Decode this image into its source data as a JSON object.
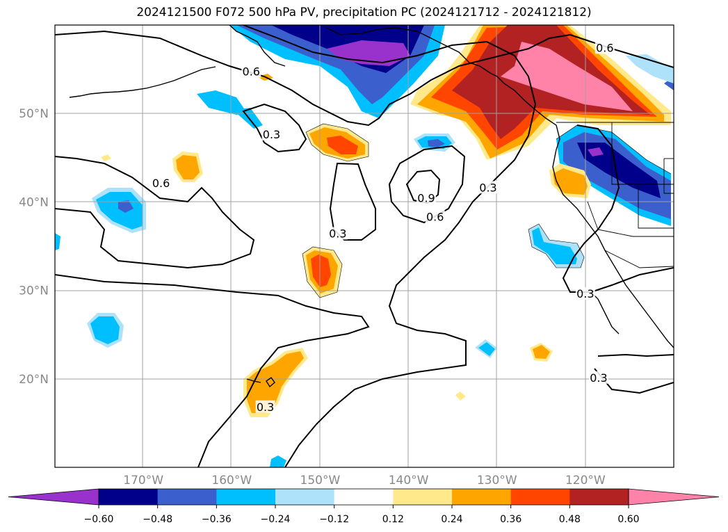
{
  "title": "2024121500 F072 500 hPa PV, precipitation PC (2024121712 - 2024121812)",
  "map": {
    "lat_labels": [
      {
        "lat": 50,
        "label": "50°N"
      },
      {
        "lat": 40,
        "label": "40°N"
      },
      {
        "lat": 30,
        "label": "30°N"
      },
      {
        "lat": 20,
        "label": "20°N"
      }
    ],
    "lon_labels": [
      {
        "lon": -170,
        "label": "170°W"
      },
      {
        "lon": -160,
        "label": "160°W"
      },
      {
        "lon": -150,
        "label": "150°W"
      },
      {
        "lon": -140,
        "label": "140°W"
      },
      {
        "lon": -130,
        "label": "130°W"
      },
      {
        "lon": -120,
        "label": "120°W"
      }
    ],
    "contour_labels": [
      {
        "text": "0.6",
        "lon": -157.8,
        "lat": 54.6
      },
      {
        "text": "0.6",
        "lon": -117.8,
        "lat": 57.3
      },
      {
        "text": "0.3",
        "lon": -155.5,
        "lat": 47.5
      },
      {
        "text": "0.6",
        "lon": -168.0,
        "lat": 42.0
      },
      {
        "text": "0.9",
        "lon": -138.0,
        "lat": 40.3
      },
      {
        "text": "0.6",
        "lon": -137.0,
        "lat": 38.2
      },
      {
        "text": "0.3",
        "lon": -131.0,
        "lat": 41.5
      },
      {
        "text": "0.3",
        "lon": -148.0,
        "lat": 36.3
      },
      {
        "text": "0.3",
        "lon": -120.0,
        "lat": 29.5
      },
      {
        "text": "0.3",
        "lon": -118.5,
        "lat": 20.0
      },
      {
        "text": "0.3",
        "lon": -156.2,
        "lat": 16.7
      }
    ]
  },
  "colorbar": {
    "colors": [
      "#9932cc",
      "#00008b",
      "#3b5fcd",
      "#00bfff",
      "#aee2fb",
      "#ffffff",
      "#ffe98a",
      "#ffa500",
      "#ff4500",
      "#b22222",
      "#ff82a8"
    ],
    "ticks": [
      "−0.60",
      "−0.48",
      "−0.36",
      "−0.24",
      "−0.12",
      "0.12",
      "0.24",
      "0.36",
      "0.48",
      "0.60"
    ]
  }
}
